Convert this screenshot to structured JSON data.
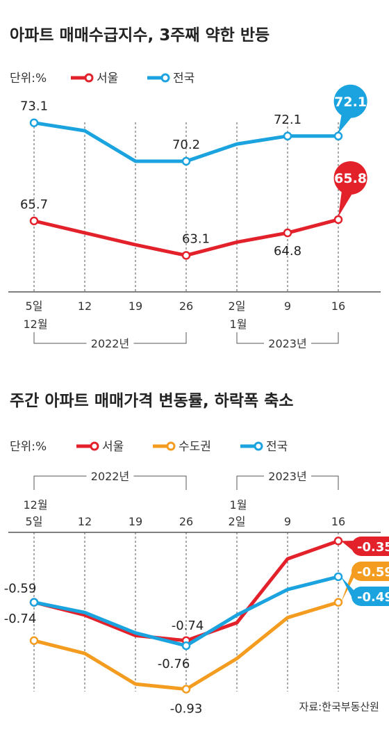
{
  "source": "자료:한국부동산원",
  "colors": {
    "seoul": "#e3212b",
    "capital": "#f39c1f",
    "national": "#1aa3de",
    "axis": "#333333"
  },
  "chart_data": [
    {
      "type": "line",
      "title": "아파트 매매수급지수, 3주째 약한 반등",
      "unit_label": "단위:%",
      "categories": [
        "5일",
        "12",
        "19",
        "26",
        "2일",
        "9",
        "16"
      ],
      "month_labels": [
        "12월",
        "",
        "",
        "",
        "1월",
        "",
        ""
      ],
      "year_groups": [
        {
          "label": "2022년",
          "from": 0,
          "to": 3
        },
        {
          "label": "2023년",
          "from": 4,
          "to": 6
        }
      ],
      "series": [
        {
          "name": "서울",
          "color": "#e3212b",
          "values": [
            65.7,
            64.8,
            63.9,
            63.1,
            64.1,
            64.8,
            65.8
          ],
          "labels": [
            {
              "i": 0,
              "text": "65.7"
            },
            {
              "i": 3,
              "text": "63.1"
            },
            {
              "i": 5,
              "text": "64.8"
            }
          ],
          "callout": {
            "i": 6,
            "text": "65.8"
          }
        },
        {
          "name": "전국",
          "color": "#1aa3de",
          "values": [
            73.1,
            72.5,
            70.2,
            70.2,
            71.5,
            72.1,
            72.1
          ],
          "labels": [
            {
              "i": 0,
              "text": "73.1"
            },
            {
              "i": 3,
              "text": "70.2"
            },
            {
              "i": 5,
              "text": "72.1"
            }
          ],
          "callout": {
            "i": 6,
            "text": "72.1"
          }
        }
      ],
      "ylim": [
        61.5,
        74.5
      ]
    },
    {
      "type": "line",
      "title": "주간 아파트 매매가격 변동률, 하락폭 축소",
      "unit_label": "단위:%",
      "categories": [
        "5일",
        "12",
        "19",
        "26",
        "2일",
        "9",
        "16"
      ],
      "month_labels": [
        "12월",
        "",
        "",
        "",
        "1월",
        "",
        ""
      ],
      "year_groups": [
        {
          "label": "2022년",
          "from": 0,
          "to": 3
        },
        {
          "label": "2023년",
          "from": 4,
          "to": 6
        }
      ],
      "series": [
        {
          "name": "서울",
          "color": "#e3212b",
          "values": [
            -0.59,
            -0.64,
            -0.72,
            -0.74,
            -0.67,
            -0.42,
            -0.35
          ],
          "labels": [
            {
              "i": 0,
              "text": "-0.59"
            },
            {
              "i": 3,
              "text": "-0.74"
            }
          ],
          "callout": {
            "i": 6,
            "text": "-0.35"
          }
        },
        {
          "name": "수도권",
          "color": "#f39c1f",
          "values": [
            -0.74,
            -0.79,
            -0.91,
            -0.93,
            -0.81,
            -0.65,
            -0.59
          ],
          "labels": [
            {
              "i": 0,
              "text": "-0.74"
            },
            {
              "i": 3,
              "text": "-0.93"
            }
          ],
          "callout": {
            "i": 6,
            "text": "-0.59"
          }
        },
        {
          "name": "전국",
          "color": "#1aa3de",
          "values": [
            -0.59,
            -0.63,
            -0.71,
            -0.76,
            -0.64,
            -0.54,
            -0.49
          ],
          "labels": [
            {
              "i": 3,
              "text": "-0.76"
            }
          ],
          "callout": {
            "i": 6,
            "text": "-0.49"
          }
        }
      ],
      "ylim": [
        -0.98,
        -0.3
      ]
    }
  ]
}
